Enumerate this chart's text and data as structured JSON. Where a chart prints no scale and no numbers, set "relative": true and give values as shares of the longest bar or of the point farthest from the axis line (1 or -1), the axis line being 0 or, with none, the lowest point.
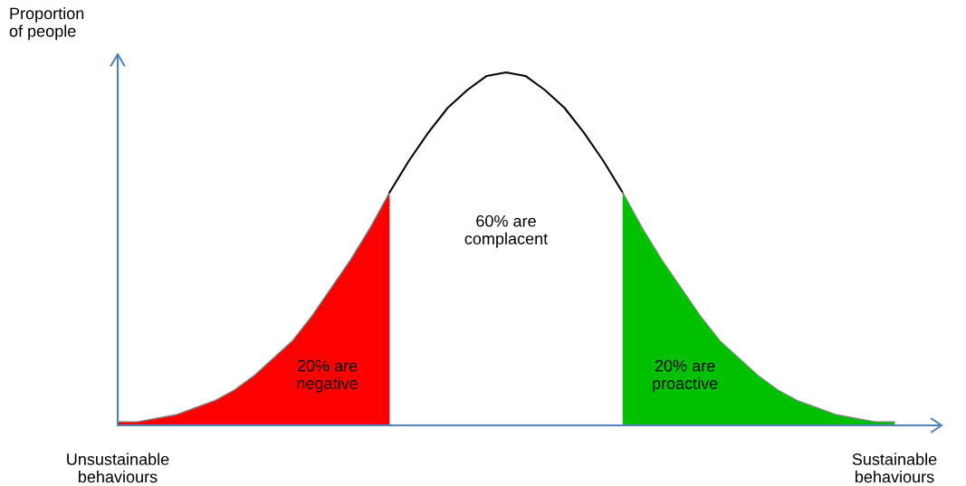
{
  "chart_data": {
    "type": "area",
    "relative": true,
    "ylabel": "Proportion\nof people",
    "categories": [
      "Unsustainable\nbehaviours",
      null,
      null,
      null,
      null,
      null,
      null,
      null,
      null,
      null,
      null,
      null,
      null,
      null,
      null,
      null,
      null,
      null,
      null,
      null,
      null,
      null,
      null,
      null,
      null,
      null,
      null,
      null,
      null,
      null,
      null,
      null,
      null,
      null,
      null,
      null,
      null,
      null,
      null,
      null,
      "Sustainable\nbehaviours"
    ],
    "series": [
      {
        "color": "#ff0000",
        "values": [
          0.01,
          0.01,
          0.02,
          0.03,
          0.05,
          0.07,
          0.1,
          0.14,
          0.19,
          0.24,
          0.31,
          0.39,
          0.47,
          0.56,
          0.66,
          null,
          null,
          null,
          null,
          null,
          null,
          null,
          null,
          null,
          null,
          null,
          null,
          null,
          null,
          null,
          null,
          null,
          null,
          null,
          null,
          null,
          null,
          null,
          null,
          null,
          null
        ]
      },
      {
        "type": "line",
        "color": "#000000",
        "values": [
          null,
          null,
          null,
          null,
          null,
          null,
          null,
          null,
          null,
          null,
          null,
          null,
          null,
          null,
          0.66,
          0.75,
          0.83,
          0.9,
          0.95,
          0.99,
          1.0,
          0.99,
          0.95,
          0.9,
          0.83,
          0.75,
          0.66,
          null,
          null,
          null,
          null,
          null,
          null,
          null,
          null,
          null,
          null,
          null,
          null,
          null,
          null
        ]
      },
      {
        "color": "#00c000",
        "values": [
          null,
          null,
          null,
          null,
          null,
          null,
          null,
          null,
          null,
          null,
          null,
          null,
          null,
          null,
          null,
          null,
          null,
          null,
          null,
          null,
          null,
          null,
          null,
          null,
          null,
          null,
          0.66,
          0.56,
          0.47,
          0.39,
          0.31,
          0.24,
          0.19,
          0.14,
          0.1,
          0.07,
          0.05,
          0.03,
          0.02,
          0.01,
          0.01
        ]
      }
    ],
    "annotations": [
      "20% are\nnegative",
      "60% are\ncomplacent",
      "20% are\nproactive"
    ]
  }
}
